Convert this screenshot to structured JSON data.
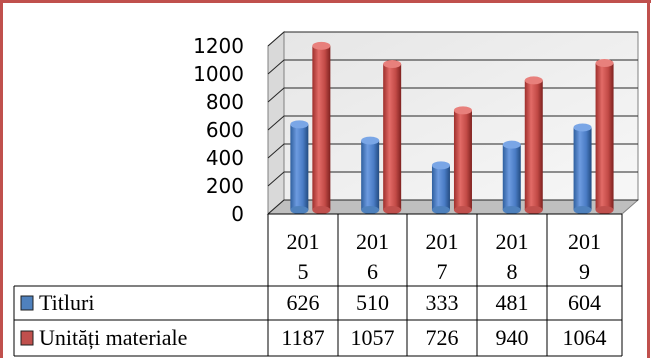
{
  "chart_data": {
    "type": "bar",
    "style": "3d-cylinder",
    "categories": [
      {
        "line1": "201",
        "line2": "5"
      },
      {
        "line1": "201",
        "line2": "6"
      },
      {
        "line1": "201",
        "line2": "7"
      },
      {
        "line1": "201",
        "line2": "8"
      },
      {
        "line1": "201",
        "line2": "9"
      }
    ],
    "series": [
      {
        "name": "Titluri",
        "color": "#4f81bd",
        "values": [
          626,
          510,
          333,
          481,
          604
        ]
      },
      {
        "name": "Unități materiale",
        "color": "#c0504d",
        "values": [
          1187,
          1057,
          726,
          940,
          1064
        ]
      }
    ],
    "yticks": [
      "0",
      "200",
      "400",
      "600",
      "800",
      "1000",
      "1200"
    ],
    "ylim": [
      0,
      1200
    ],
    "grid": true,
    "legend": "data-table"
  },
  "table": {
    "rows": [
      {
        "label": "Titluri",
        "values": [
          "626",
          "510",
          "333",
          "481",
          "604"
        ]
      },
      {
        "label": "Unități materiale",
        "values": [
          "1187",
          "1057",
          "726",
          "940",
          "1064"
        ]
      }
    ]
  }
}
